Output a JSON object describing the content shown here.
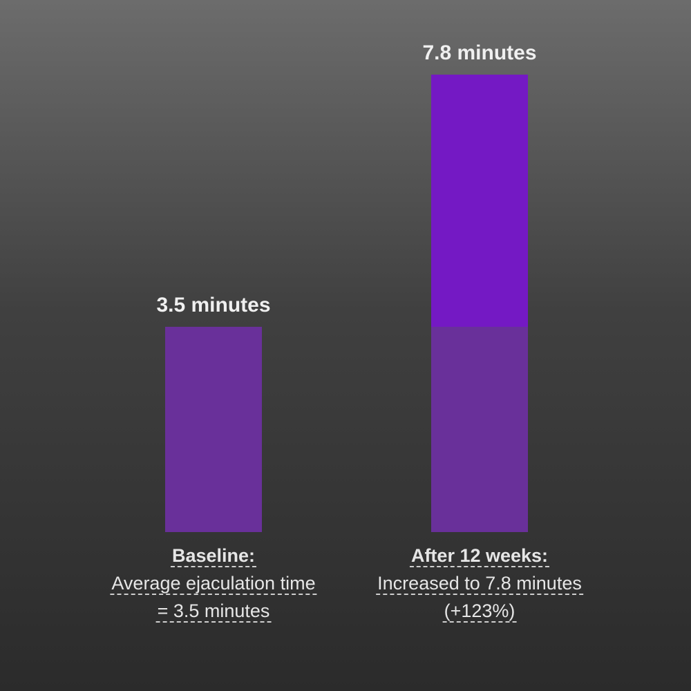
{
  "chart_data": {
    "type": "bar",
    "categories": [
      "Baseline:",
      "After 12 weeks:"
    ],
    "values": [
      3.5,
      7.8
    ],
    "value_labels": [
      "3.5 minutes",
      "7.8 minutes"
    ],
    "descriptions": [
      [
        "Average ejaculation time",
        "= 3.5 minutes"
      ],
      [
        "Increased to 7.8 minutes",
        "(+123%)"
      ]
    ],
    "colors": [
      "#69309a",
      "#7419c4"
    ]
  }
}
